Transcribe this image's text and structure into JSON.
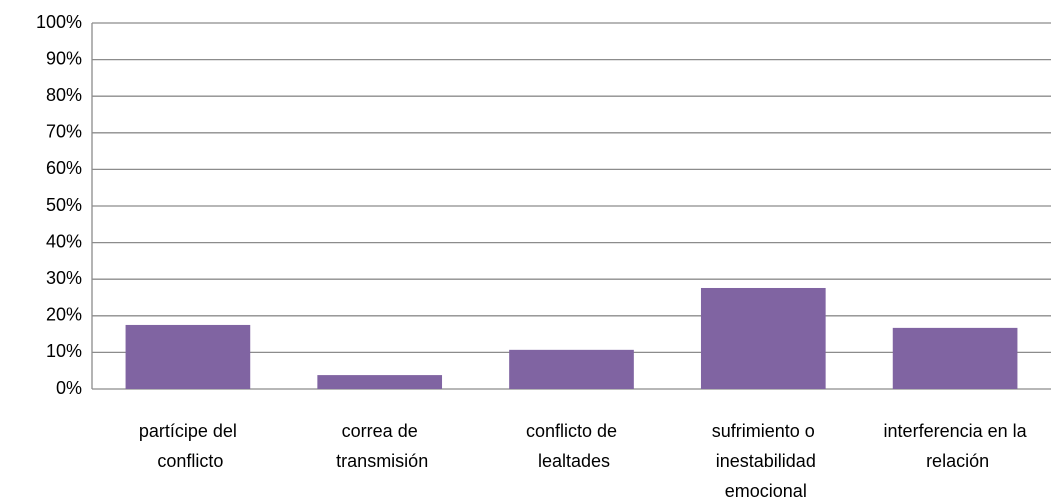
{
  "chart_data": {
    "type": "bar",
    "categories": [
      "partícipe del conflicto",
      "correa de transmisión",
      "conflicto de lealtades",
      "sufrimiento o inestabilidad emocional",
      "interferencia en la relación"
    ],
    "values": [
      17.5,
      3.8,
      10.7,
      27.6,
      16.7
    ],
    "color": "#8064a2",
    "ylim": [
      0,
      100
    ],
    "yticks": [
      {
        "value": 0,
        "label": "0%"
      },
      {
        "value": 10,
        "label": "10%"
      },
      {
        "value": 20,
        "label": "20%"
      },
      {
        "value": 30,
        "label": "30%"
      },
      {
        "value": 40,
        "label": "40%"
      },
      {
        "value": 50,
        "label": "50%"
      },
      {
        "value": 60,
        "label": "60%"
      },
      {
        "value": 70,
        "label": "70%"
      },
      {
        "value": 80,
        "label": "80%"
      },
      {
        "value": 90,
        "label": "90%"
      },
      {
        "value": 100,
        "label": "100%"
      }
    ],
    "grid": true
  }
}
